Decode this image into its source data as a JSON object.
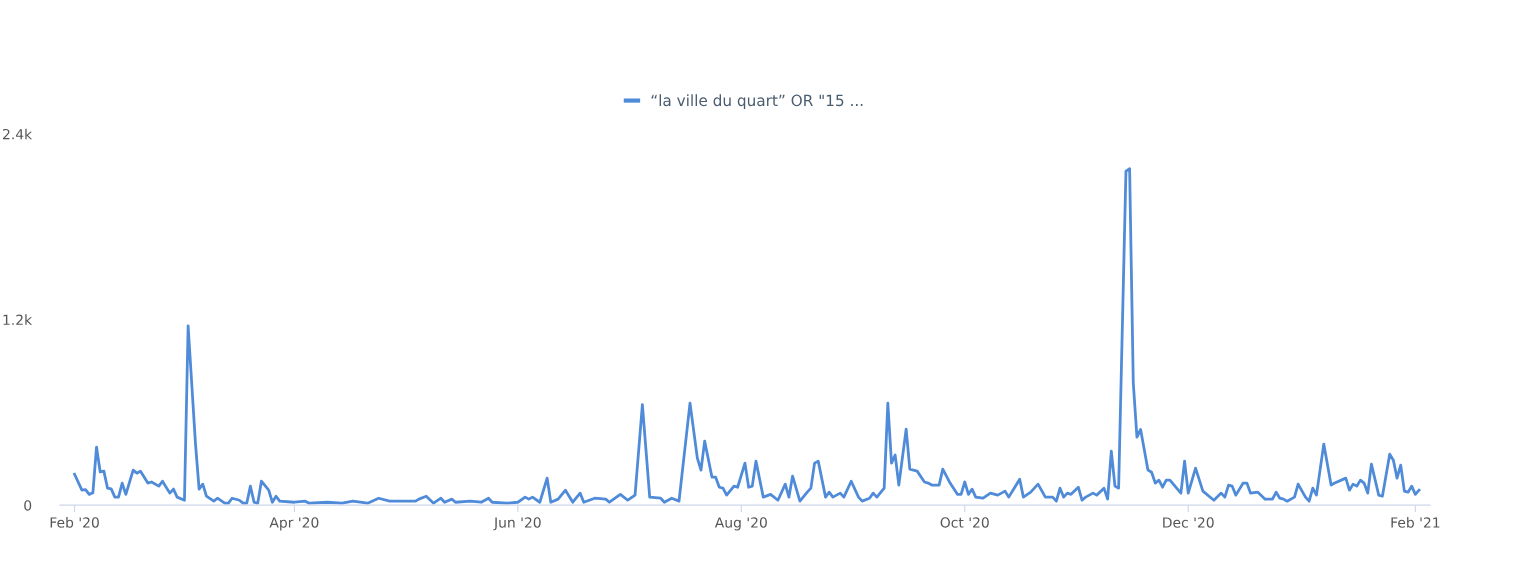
{
  "chart_data": {
    "type": "line",
    "x": [
      "2020-02-01",
      "2020-02-03",
      "2020-02-04",
      "2020-02-05",
      "2020-02-06",
      "2020-02-07",
      "2020-02-08",
      "2020-02-09",
      "2020-02-10",
      "2020-02-11",
      "2020-02-12",
      "2020-02-13",
      "2020-02-14",
      "2020-02-15",
      "2020-02-17",
      "2020-02-18",
      "2020-02-19",
      "2020-02-21",
      "2020-02-22",
      "2020-02-24",
      "2020-02-25",
      "2020-02-27",
      "2020-02-28",
      "2020-02-29",
      "2020-03-02",
      "2020-03-03",
      "2020-03-05",
      "2020-03-06",
      "2020-03-07",
      "2020-03-08",
      "2020-03-10",
      "2020-03-11",
      "2020-03-13",
      "2020-03-14",
      "2020-03-15",
      "2020-03-17",
      "2020-03-18",
      "2020-03-19",
      "2020-03-20",
      "2020-03-21",
      "2020-03-22",
      "2020-03-23",
      "2020-03-25",
      "2020-03-26",
      "2020-03-27",
      "2020-03-28",
      "2020-04-01",
      "2020-04-04",
      "2020-04-05",
      "2020-04-10",
      "2020-04-14",
      "2020-04-17",
      "2020-04-21",
      "2020-04-24",
      "2020-04-27",
      "2020-04-30",
      "2020-05-04",
      "2020-05-05",
      "2020-05-07",
      "2020-05-09",
      "2020-05-11",
      "2020-05-12",
      "2020-05-14",
      "2020-05-15",
      "2020-05-19",
      "2020-05-22",
      "2020-05-24",
      "2020-05-25",
      "2020-05-29",
      "2020-06-01",
      "2020-06-03",
      "2020-06-04",
      "2020-06-05",
      "2020-06-07",
      "2020-06-09",
      "2020-06-10",
      "2020-06-12",
      "2020-06-14",
      "2020-06-16",
      "2020-06-18",
      "2020-06-19",
      "2020-06-22",
      "2020-06-25",
      "2020-06-26",
      "2020-06-29",
      "2020-07-01",
      "2020-07-03",
      "2020-07-05",
      "2020-07-07",
      "2020-07-10",
      "2020-07-11",
      "2020-07-13",
      "2020-07-15",
      "2020-07-18",
      "2020-07-20",
      "2020-07-21",
      "2020-07-22",
      "2020-07-24",
      "2020-07-25",
      "2020-07-26",
      "2020-07-27",
      "2020-07-28",
      "2020-07-30",
      "2020-07-31",
      "2020-08-02",
      "2020-08-03",
      "2020-08-04",
      "2020-08-05",
      "2020-08-07",
      "2020-08-09",
      "2020-08-11",
      "2020-08-13",
      "2020-08-14",
      "2020-08-15",
      "2020-08-17",
      "2020-08-19",
      "2020-08-20",
      "2020-08-21",
      "2020-08-22",
      "2020-08-24",
      "2020-08-25",
      "2020-08-26",
      "2020-08-28",
      "2020-08-29",
      "2020-08-31",
      "2020-09-02",
      "2020-09-03",
      "2020-09-05",
      "2020-09-06",
      "2020-09-07",
      "2020-09-09",
      "2020-09-10",
      "2020-09-11",
      "2020-09-12",
      "2020-09-13",
      "2020-09-15",
      "2020-09-16",
      "2020-09-18",
      "2020-09-20",
      "2020-09-21",
      "2020-09-22",
      "2020-09-24",
      "2020-09-25",
      "2020-09-27",
      "2020-09-29",
      "2020-09-30",
      "2020-10-01",
      "2020-10-02",
      "2020-10-03",
      "2020-10-04",
      "2020-10-06",
      "2020-10-08",
      "2020-10-10",
      "2020-10-12",
      "2020-10-13",
      "2020-10-16",
      "2020-10-17",
      "2020-10-19",
      "2020-10-21",
      "2020-10-23",
      "2020-10-25",
      "2020-10-26",
      "2020-10-27",
      "2020-10-28",
      "2020-10-29",
      "2020-10-30",
      "2020-11-01",
      "2020-11-02",
      "2020-11-03",
      "2020-11-05",
      "2020-11-06",
      "2020-11-08",
      "2020-11-09",
      "2020-11-10",
      "2020-11-11",
      "2020-11-12",
      "2020-11-14",
      "2020-11-15",
      "2020-11-16",
      "2020-11-17",
      "2020-11-18",
      "2020-11-20",
      "2020-11-21",
      "2020-11-22",
      "2020-11-23",
      "2020-11-24",
      "2020-11-25",
      "2020-11-26",
      "2020-11-29",
      "2020-11-30",
      "2020-12-01",
      "2020-12-03",
      "2020-12-05",
      "2020-12-08",
      "2020-12-10",
      "2020-12-11",
      "2020-12-12",
      "2020-12-13",
      "2020-12-14",
      "2020-12-16",
      "2020-12-17",
      "2020-12-18",
      "2020-12-20",
      "2020-12-22",
      "2020-12-24",
      "2020-12-25",
      "2020-12-26",
      "2020-12-27",
      "2020-12-28",
      "2020-12-30",
      "2020-12-31",
      "2021-01-02",
      "2021-01-03",
      "2021-01-04",
      "2021-01-05",
      "2021-01-07",
      "2021-01-09",
      "2021-01-10",
      "2021-01-13",
      "2021-01-14",
      "2021-01-15",
      "2021-01-16",
      "2021-01-17",
      "2021-01-18",
      "2021-01-19",
      "2021-01-20",
      "2021-01-22",
      "2021-01-23",
      "2021-01-25",
      "2021-01-26",
      "2021-01-27",
      "2021-01-28",
      "2021-01-29",
      "2021-01-30",
      "2021-01-31",
      "2021-02-01",
      "2021-02-02"
    ],
    "series": [
      {
        "name": "“la ville du quart” OR \"15 ...",
        "color": "#4f8bd8",
        "values": [
          200,
          97,
          100,
          70,
          80,
          375,
          215,
          220,
          110,
          105,
          52,
          52,
          143,
          70,
          227,
          207,
          220,
          143,
          150,
          123,
          155,
          78,
          104,
          52,
          32,
          1160,
          400,
          104,
          136,
          58,
          26,
          45,
          13,
          13,
          45,
          32,
          13,
          13,
          123,
          19,
          13,
          155,
          97,
          19,
          58,
          26,
          19,
          26,
          13,
          19,
          13,
          26,
          13,
          45,
          26,
          26,
          26,
          39,
          58,
          13,
          45,
          19,
          39,
          19,
          26,
          19,
          45,
          19,
          13,
          19,
          52,
          39,
          52,
          19,
          175,
          19,
          39,
          97,
          19,
          78,
          19,
          45,
          39,
          19,
          70,
          32,
          65,
          650,
          52,
          45,
          19,
          45,
          26,
          660,
          304,
          227,
          414,
          181,
          181,
          116,
          110,
          65,
          123,
          116,
          272,
          116,
          123,
          285,
          52,
          70,
          32,
          136,
          52,
          188,
          26,
          84,
          110,
          272,
          285,
          52,
          84,
          52,
          78,
          52,
          155,
          52,
          26,
          45,
          78,
          52,
          110,
          660,
          272,
          324,
          130,
          492,
          233,
          220,
          150,
          143,
          130,
          130,
          233,
          143,
          70,
          70,
          150,
          70,
          104,
          52,
          45,
          78,
          65,
          91,
          52,
          168,
          52,
          84,
          136,
          52,
          52,
          26,
          110,
          52,
          78,
          70,
          116,
          32,
          52,
          78,
          65,
          110,
          39,
          350,
          123,
          110,
          2160,
          2175,
          790,
          440,
          490,
          227,
          213,
          143,
          162,
          116,
          162,
          162,
          78,
          285,
          78,
          240,
          91,
          32,
          78,
          52,
          130,
          123,
          65,
          143,
          143,
          78,
          84,
          39,
          39,
          84,
          45,
          39,
          26,
          52,
          136,
          52,
          26,
          110,
          65,
          395,
          130,
          143,
          175,
          97,
          136,
          123,
          162,
          143,
          78,
          265,
          65,
          58,
          330,
          291,
          175,
          259,
          91,
          84,
          123,
          70,
          97
        ]
      }
    ],
    "xlim": [
      "2020-01-28",
      "2021-02-05"
    ],
    "xticks": [
      {
        "value": "2020-02-01",
        "label": "Feb '20"
      },
      {
        "value": "2020-04-01",
        "label": "Apr '20"
      },
      {
        "value": "2020-06-01",
        "label": "Jun '20"
      },
      {
        "value": "2020-08-01",
        "label": "Aug '20"
      },
      {
        "value": "2020-10-01",
        "label": "Oct '20"
      },
      {
        "value": "2020-12-01",
        "label": "Dec '20"
      },
      {
        "value": "2021-02-01",
        "label": "Feb '21"
      }
    ],
    "ylim": [
      0,
      2400
    ],
    "yticks": [
      0,
      {
        "value": 1200,
        "label": "1.2k"
      },
      {
        "value": 2400,
        "label": "2.4k"
      }
    ],
    "legend": "top",
    "grid": false,
    "marker": "none",
    "line_style": "solid"
  }
}
